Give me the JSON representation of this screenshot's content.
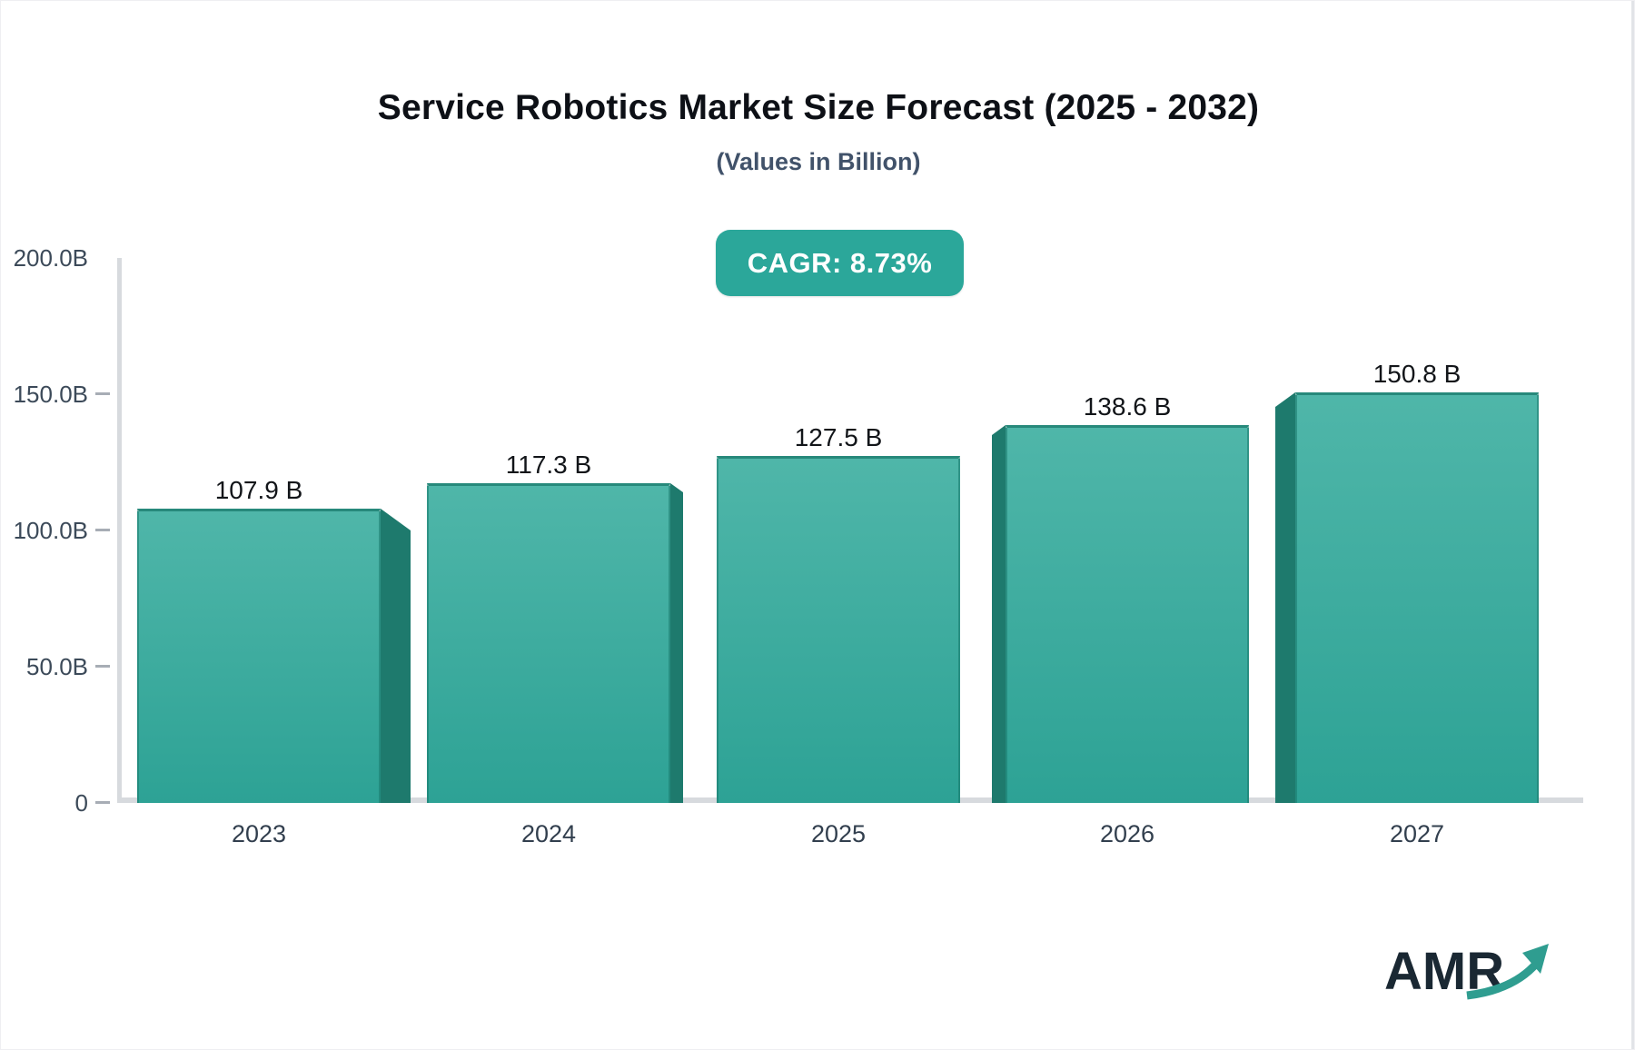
{
  "header": {
    "title": "Service Robotics Market Size Forecast (2025 - 2032)",
    "subtitle": "(Values in Billion)"
  },
  "badge": {
    "label": "CAGR: 8.73%",
    "bg_color": "#2ba79a",
    "text_color": "#ffffff"
  },
  "chart_data": {
    "type": "bar",
    "title": "Service Robotics Market Size Forecast (2025 - 2032)",
    "subtitle": "(Values in Billion)",
    "categories": [
      "2023",
      "2024",
      "2025",
      "2026",
      "2027"
    ],
    "values": [
      107.9,
      117.3,
      127.5,
      138.6,
      150.8
    ],
    "value_labels": [
      "107.9 B",
      "117.3 B",
      "127.5 B",
      "138.6 B",
      "150.8 B"
    ],
    "unit": "Billion",
    "ylabel_ticks": [
      "200.0B",
      "150.0B",
      "100.0B",
      "50.0B",
      "0"
    ],
    "ylim": [
      0,
      200
    ],
    "grid": false,
    "legend": false,
    "style_3d": true,
    "colors": {
      "bar_top": "#4fb6a9",
      "bar_bottom": "#2da295",
      "bar_side": "#1e7a6d",
      "bar_top_edge": "#27897b",
      "axis": "#d7dade",
      "tick_label": "#3c4a59",
      "category_label": "#323f4e",
      "value_label": "#121519"
    }
  },
  "logo": {
    "text": "AMR",
    "text_color": "#1a2833",
    "arrow_color": "#2f9d90"
  },
  "icons": {
    "logo_arrow": "growth-arrow-icon"
  }
}
